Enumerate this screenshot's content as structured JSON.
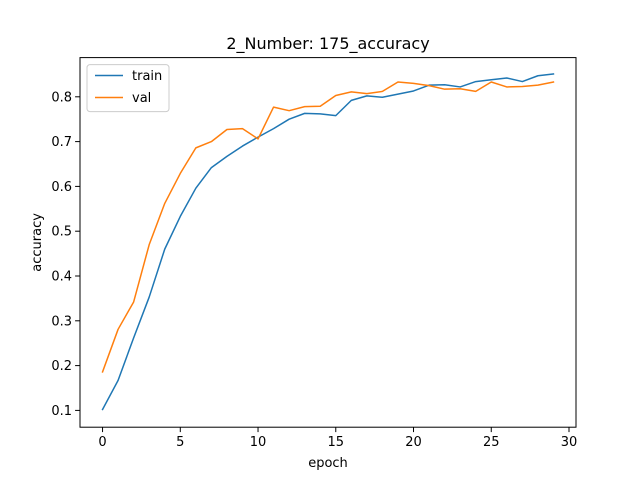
{
  "chart_data": {
    "type": "line",
    "title": "2_Number: 175_accuracy",
    "xlabel": "epoch",
    "ylabel": "accuracy",
    "xlim": [
      -1.45,
      30.45
    ],
    "ylim": [
      0.0625,
      0.8875
    ],
    "xticks": [
      0,
      5,
      10,
      15,
      20,
      25,
      30
    ],
    "xtick_labels": [
      "0",
      "5",
      "10",
      "15",
      "20",
      "25",
      "30"
    ],
    "yticks": [
      0.1,
      0.2,
      0.3,
      0.4,
      0.5,
      0.6,
      0.7,
      0.8
    ],
    "ytick_labels": [
      "0.1",
      "0.2",
      "0.3",
      "0.4",
      "0.5",
      "0.6",
      "0.7",
      "0.8"
    ],
    "grid": false,
    "legend_position": "upper-left",
    "x": [
      0,
      1,
      2,
      3,
      4,
      5,
      6,
      7,
      8,
      9,
      10,
      11,
      12,
      13,
      14,
      15,
      16,
      17,
      18,
      19,
      20,
      21,
      22,
      23,
      24,
      25,
      26,
      27,
      28,
      29
    ],
    "series": [
      {
        "name": "train",
        "color": "#1f77b4",
        "values": [
          0.102,
          0.167,
          0.262,
          0.353,
          0.46,
          0.533,
          0.596,
          0.642,
          0.667,
          0.69,
          0.71,
          0.729,
          0.75,
          0.763,
          0.762,
          0.758,
          0.792,
          0.802,
          0.799,
          0.806,
          0.813,
          0.826,
          0.827,
          0.822,
          0.834,
          0.838,
          0.842,
          0.834,
          0.847,
          0.851
        ]
      },
      {
        "name": "val",
        "color": "#ff7f0e",
        "values": [
          0.186,
          0.281,
          0.342,
          0.47,
          0.562,
          0.629,
          0.686,
          0.7,
          0.727,
          0.729,
          0.706,
          0.777,
          0.769,
          0.778,
          0.779,
          0.803,
          0.811,
          0.807,
          0.812,
          0.833,
          0.83,
          0.825,
          0.817,
          0.818,
          0.812,
          0.833,
          0.822,
          0.823,
          0.826,
          0.833
        ]
      }
    ]
  }
}
